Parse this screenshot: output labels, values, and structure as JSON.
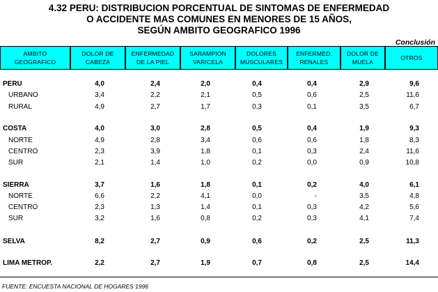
{
  "title": {
    "line1": "4.32  PERU: DISTRIBUCION PORCENTUAL DE SINTOMAS DE ENFERMEDAD",
    "line2": "O ACCIDENTE MAS COMUNES EN MENORES DE 15 AÑOS,",
    "line3": "SEGÚN AMBITO GEOGRAFICO 1996"
  },
  "conclusion": "Conclusión",
  "columns": [
    {
      "l1": "AMBITO",
      "l2": "GEOGRAFICO"
    },
    {
      "l1": "DOLOR DE",
      "l2": "CABEZA"
    },
    {
      "l1": "ENFERMEDAD",
      "l2": "DE LA PIEL"
    },
    {
      "l1": "SARAMPION",
      "l2": "VARICELA"
    },
    {
      "l1": "DOLORES",
      "l2": "MUSCULARES"
    },
    {
      "l1": "ENFERMED.",
      "l2": "RENALES"
    },
    {
      "l1": "DOLOR DE",
      "l2": "MUELA"
    },
    {
      "l1": "OTROS",
      "l2": ""
    }
  ],
  "rows": [
    {
      "label": "PERU",
      "bold": true,
      "values": [
        "4,0",
        "2,4",
        "2,0",
        "0,4",
        "0,4",
        "2,9",
        "9,6"
      ]
    },
    {
      "label": "URBANO",
      "bold": false,
      "values": [
        "3,4",
        "2,2",
        "2,1",
        "0,5",
        "0,6",
        "2,5",
        "11,6"
      ]
    },
    {
      "label": "RURAL",
      "bold": false,
      "values": [
        "4,9",
        "2,7",
        "1,7",
        "0,3",
        "0,1",
        "3,5",
        "6,7"
      ]
    },
    {
      "label": "COSTA",
      "bold": true,
      "values": [
        "4,0",
        "3,0",
        "2,8",
        "0,5",
        "0,4",
        "1,9",
        "9,3"
      ]
    },
    {
      "label": "NORTE",
      "bold": false,
      "values": [
        "4,9",
        "2,8",
        "3,4",
        "0,6",
        "0,6",
        "1,8",
        "8,3"
      ]
    },
    {
      "label": "CENTRO",
      "bold": false,
      "values": [
        "2,3",
        "3,9",
        "1,8",
        "0,1",
        "0,3",
        "2,4",
        "11,6"
      ]
    },
    {
      "label": "SUR",
      "bold": false,
      "values": [
        "2,1",
        "1,4",
        "1,0",
        "0,2",
        "0,0",
        "0,9",
        "10,8"
      ]
    },
    {
      "label": "SIERRA",
      "bold": true,
      "values": [
        "3,7",
        "1,6",
        "1,8",
        "0,1",
        "0,2",
        "4,0",
        "6,1"
      ]
    },
    {
      "label": "NORTE",
      "bold": false,
      "values": [
        "6,6",
        "2,2",
        "4,1",
        "0,0",
        "-",
        "3,5",
        "4,8"
      ]
    },
    {
      "label": "CENTRO",
      "bold": false,
      "values": [
        "2,3",
        "1,3",
        "1,4",
        "0,1",
        "0,3",
        "4,2",
        "5,6"
      ]
    },
    {
      "label": "SUR",
      "bold": false,
      "values": [
        "3,2",
        "1,6",
        "0,8",
        "0,2",
        "0,3",
        "4,1",
        "7,4"
      ]
    },
    {
      "label": "SELVA",
      "bold": true,
      "values": [
        "8,2",
        "2,7",
        "0,9",
        "0,6",
        "0,2",
        "2,5",
        "11,3"
      ]
    },
    {
      "label": "LIMA METROP.",
      "bold": true,
      "values": [
        "2,2",
        "2,7",
        "1,9",
        "0,7",
        "0,8",
        "2,5",
        "14,4"
      ]
    }
  ],
  "source": "FUENTE: ENCUESTA NACIONAL DE HOGARES 1996"
}
